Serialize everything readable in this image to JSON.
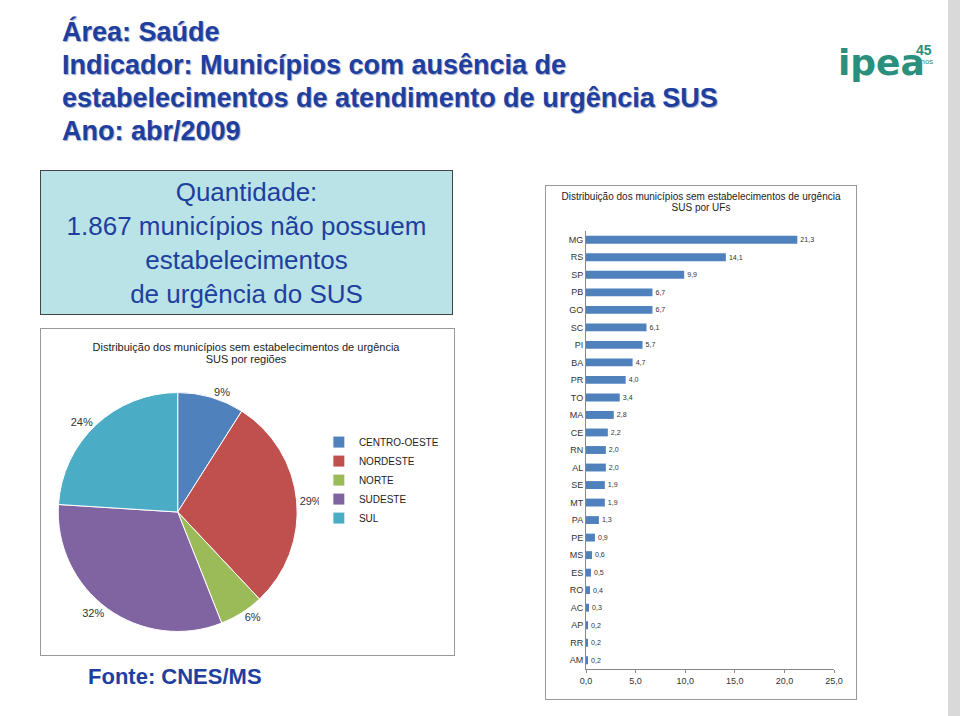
{
  "header": {
    "lines": [
      "Área: Saúde",
      "Indicador: Municípios com ausência de",
      "estabelecimentos de atendimento de urgência SUS",
      "Ano: abr/2009"
    ]
  },
  "logo": {
    "name": "ipea",
    "number": "45",
    "text": "anos"
  },
  "summary_box": {
    "lines": [
      "Quantidade:",
      "1.867 municípios não possuem",
      "estabelecimentos",
      "de urgência do SUS"
    ]
  },
  "chart_data": [
    {
      "type": "pie",
      "title": "Distribuição dos municípios sem estabelecimentos de urgência SUS por regiões",
      "categories": [
        "CENTRO-OESTE",
        "NORDESTE",
        "NORTE",
        "SUDESTE",
        "SUL"
      ],
      "values": [
        9,
        29,
        6,
        32,
        24
      ],
      "value_labels": [
        "9%",
        "29%",
        "6%",
        "32%",
        "24%"
      ],
      "colors": [
        "#4f81bd",
        "#c0504d",
        "#9bbb59",
        "#8064a2",
        "#4bacc6"
      ],
      "data_labels": true,
      "legend": "right"
    },
    {
      "type": "bar",
      "title": "Distribuição dos municípios sem estabelecimentos de urgência SUS por UFs",
      "orientation": "horizontal",
      "categories": [
        "MG",
        "RS",
        "SP",
        "PB",
        "GO",
        "SC",
        "PI",
        "BA",
        "PR",
        "TO",
        "MA",
        "CE",
        "RN",
        "AL",
        "SE",
        "MT",
        "PA",
        "PE",
        "MS",
        "ES",
        "RO",
        "AC",
        "AP",
        "RR",
        "AM"
      ],
      "values": [
        21.3,
        14.1,
        9.9,
        6.7,
        6.7,
        6.1,
        5.7,
        4.7,
        4.0,
        3.4,
        2.8,
        2.2,
        2.0,
        2.0,
        1.9,
        1.9,
        1.3,
        0.9,
        0.6,
        0.5,
        0.4,
        0.3,
        0.2,
        0.2,
        0.2
      ],
      "value_labels": [
        "21,3",
        "14,1",
        "9,9",
        "6,7",
        "6,7",
        "6,1",
        "5,7",
        "4,7",
        "4,0",
        "3,4",
        "2,8",
        "2,2",
        "2,0",
        "2,0",
        "1,9",
        "1,9",
        "1,3",
        "0,9",
        "0,6",
        "0,5",
        "0,4",
        "0,3",
        "0,2",
        "0,2",
        "0,2"
      ],
      "color": "#4f81bd",
      "data_labels": true,
      "grid": false,
      "xlim": [
        0,
        25
      ],
      "xticks": [
        {
          "value": 0,
          "label": "0,0"
        },
        {
          "value": 5,
          "label": "5,0"
        },
        {
          "value": 10,
          "label": "10,0"
        },
        {
          "value": 15,
          "label": "15,0"
        },
        {
          "value": 20,
          "label": "20,0"
        },
        {
          "value": 25,
          "label": "25,0"
        }
      ]
    }
  ],
  "footer": {
    "source": "Fonte: CNES/MS"
  }
}
